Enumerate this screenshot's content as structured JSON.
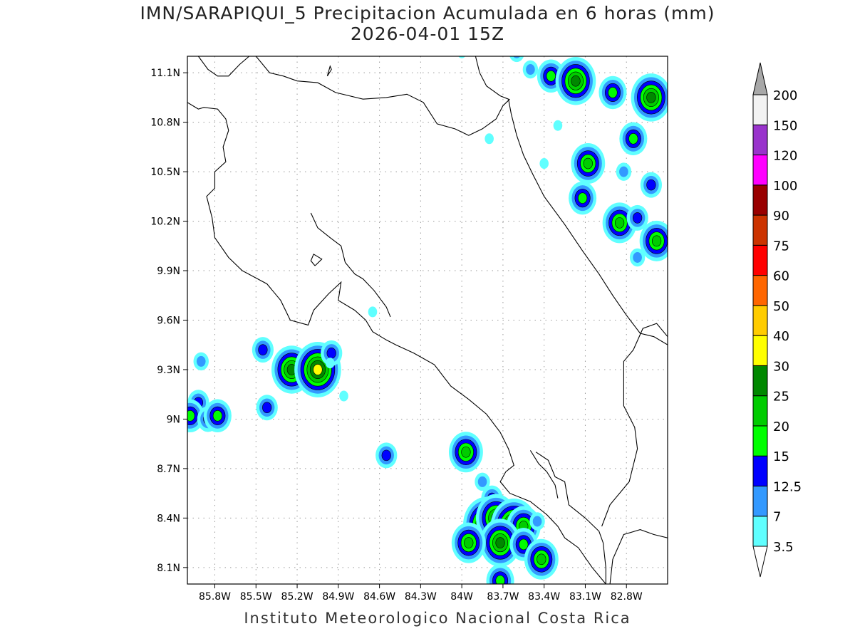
{
  "title": {
    "line1": "IMN/SARAPIQUI_5 Precipitacion Acumulada en 6 horas (mm)",
    "line2": "2026-04-01 15Z"
  },
  "footer": "Instituto Meteorologico Nacional Costa Rica",
  "map": {
    "lon_range": [
      -86.0,
      -82.5
    ],
    "lat_range": [
      8.0,
      11.2
    ],
    "lat_ticks": [
      {
        "value": 8.1,
        "label": "8.1N"
      },
      {
        "value": 8.4,
        "label": "8.4N"
      },
      {
        "value": 8.7,
        "label": "8.7N"
      },
      {
        "value": 9.0,
        "label": "9N"
      },
      {
        "value": 9.3,
        "label": "9.3N"
      },
      {
        "value": 9.6,
        "label": "9.6N"
      },
      {
        "value": 9.9,
        "label": "9.9N"
      },
      {
        "value": 10.2,
        "label": "10.2N"
      },
      {
        "value": 10.5,
        "label": "10.5N"
      },
      {
        "value": 10.8,
        "label": "10.8N"
      },
      {
        "value": 11.1,
        "label": "11.1N"
      }
    ],
    "lon_ticks": [
      {
        "value": -85.8,
        "label": "85.8W"
      },
      {
        "value": -85.5,
        "label": "85.5W"
      },
      {
        "value": -85.2,
        "label": "85.2W"
      },
      {
        "value": -84.9,
        "label": "84.9W"
      },
      {
        "value": -84.6,
        "label": "84.6W"
      },
      {
        "value": -84.3,
        "label": "84.3W"
      },
      {
        "value": -84.0,
        "label": "84W"
      },
      {
        "value": -83.7,
        "label": "83.7W"
      },
      {
        "value": -83.4,
        "label": "83.4W"
      },
      {
        "value": -83.1,
        "label": "83.1W"
      },
      {
        "value": -82.8,
        "label": "82.8W"
      }
    ],
    "grid": true,
    "colors": {
      "coastline": "#000000",
      "grid": "#9a9a9a"
    },
    "coastlines": [
      [
        [
          -85.92,
          11.2
        ],
        [
          -85.85,
          11.12
        ],
        [
          -85.78,
          11.08
        ],
        [
          -85.7,
          11.08
        ],
        [
          -85.62,
          11.15
        ],
        [
          -85.55,
          11.2
        ]
      ],
      [
        [
          -85.5,
          11.2
        ],
        [
          -85.4,
          11.1
        ],
        [
          -85.3,
          11.08
        ],
        [
          -85.2,
          11.05
        ],
        [
          -85.05,
          11.04
        ],
        [
          -84.92,
          10.98
        ],
        [
          -84.72,
          10.94
        ],
        [
          -84.55,
          10.95
        ],
        [
          -84.4,
          10.97
        ],
        [
          -84.28,
          10.92
        ],
        [
          -84.18,
          10.79
        ],
        [
          -84.05,
          10.76
        ],
        [
          -83.95,
          10.72
        ],
        [
          -83.85,
          10.76
        ],
        [
          -83.75,
          10.82
        ],
        [
          -83.7,
          10.9
        ],
        [
          -83.65,
          10.94
        ]
      ],
      [
        [
          -83.9,
          11.2
        ],
        [
          -83.87,
          11.1
        ],
        [
          -83.82,
          11.02
        ],
        [
          -83.72,
          10.96
        ],
        [
          -83.66,
          10.94
        ],
        [
          -83.64,
          10.85
        ],
        [
          -83.6,
          10.72
        ],
        [
          -83.55,
          10.6
        ],
        [
          -83.48,
          10.48
        ],
        [
          -83.4,
          10.35
        ],
        [
          -83.25,
          10.18
        ],
        [
          -83.12,
          10.02
        ],
        [
          -83.0,
          9.88
        ],
        [
          -82.9,
          9.75
        ],
        [
          -82.8,
          9.63
        ],
        [
          -82.7,
          9.52
        ],
        [
          -82.6,
          9.5
        ],
        [
          -82.5,
          9.45
        ]
      ],
      [
        [
          -86.0,
          10.92
        ],
        [
          -85.92,
          10.88
        ],
        [
          -85.88,
          10.89
        ],
        [
          -85.78,
          10.88
        ],
        [
          -85.72,
          10.82
        ],
        [
          -85.7,
          10.75
        ],
        [
          -85.74,
          10.65
        ],
        [
          -85.72,
          10.56
        ],
        [
          -85.8,
          10.5
        ],
        [
          -85.8,
          10.4
        ],
        [
          -85.86,
          10.35
        ],
        [
          -85.82,
          10.22
        ],
        [
          -85.8,
          10.1
        ],
        [
          -85.7,
          9.98
        ],
        [
          -85.6,
          9.9
        ],
        [
          -85.42,
          9.82
        ],
        [
          -85.32,
          9.72
        ],
        [
          -85.25,
          9.6
        ],
        [
          -85.12,
          9.57
        ],
        [
          -85.08,
          9.66
        ],
        [
          -84.97,
          9.76
        ],
        [
          -84.88,
          9.83
        ],
        [
          -84.9,
          9.72
        ],
        [
          -84.78,
          9.66
        ],
        [
          -84.7,
          9.6
        ],
        [
          -84.65,
          9.53
        ],
        [
          -84.55,
          9.48
        ],
        [
          -84.48,
          9.45
        ],
        [
          -84.35,
          9.4
        ],
        [
          -84.2,
          9.33
        ],
        [
          -84.08,
          9.2
        ],
        [
          -83.95,
          9.12
        ],
        [
          -83.82,
          9.03
        ],
        [
          -83.72,
          8.92
        ],
        [
          -83.66,
          8.82
        ],
        [
          -83.62,
          8.72
        ],
        [
          -83.68,
          8.68
        ],
        [
          -83.72,
          8.62
        ],
        [
          -83.65,
          8.55
        ],
        [
          -83.5,
          8.5
        ],
        [
          -83.38,
          8.42
        ],
        [
          -83.3,
          8.35
        ],
        [
          -83.25,
          8.28
        ],
        [
          -83.15,
          8.22
        ],
        [
          -83.05,
          8.1
        ],
        [
          -82.97,
          8.02
        ],
        [
          -82.95,
          8.0
        ]
      ],
      [
        [
          -85.1,
          10.25
        ],
        [
          -85.05,
          10.16
        ],
        [
          -84.96,
          10.1
        ],
        [
          -84.88,
          10.05
        ],
        [
          -84.85,
          9.95
        ],
        [
          -84.78,
          9.88
        ],
        [
          -84.72,
          9.85
        ],
        [
          -84.64,
          9.78
        ],
        [
          -84.55,
          9.68
        ],
        [
          -84.52,
          9.62
        ]
      ],
      [
        [
          -83.46,
          8.8
        ],
        [
          -83.37,
          8.75
        ],
        [
          -83.32,
          8.65
        ],
        [
          -83.25,
          8.62
        ],
        [
          -83.22,
          8.48
        ],
        [
          -83.1,
          8.4
        ],
        [
          -83.0,
          8.32
        ],
        [
          -82.97,
          8.25
        ],
        [
          -82.95,
          8.1
        ],
        [
          -82.95,
          8.0
        ]
      ],
      [
        [
          -82.92,
          8.0
        ],
        [
          -82.9,
          8.15
        ],
        [
          -82.82,
          8.3
        ],
        [
          -82.7,
          8.33
        ],
        [
          -82.6,
          8.3
        ],
        [
          -82.5,
          8.28
        ]
      ],
      [
        [
          -83.5,
          8.81
        ],
        [
          -83.44,
          8.73
        ],
        [
          -83.38,
          8.68
        ],
        [
          -83.32,
          8.6
        ],
        [
          -83.3,
          8.52
        ]
      ],
      [
        [
          -82.5,
          9.5
        ],
        [
          -82.58,
          9.58
        ],
        [
          -82.68,
          9.55
        ],
        [
          -82.75,
          9.42
        ],
        [
          -82.82,
          9.35
        ],
        [
          -82.82,
          9.08
        ],
        [
          -82.74,
          8.95
        ],
        [
          -82.72,
          8.82
        ],
        [
          -82.78,
          8.62
        ],
        [
          -82.92,
          8.48
        ],
        [
          -82.98,
          8.35
        ]
      ],
      [
        [
          -85.07,
          9.93
        ],
        [
          -85.02,
          9.97
        ],
        [
          -85.08,
          10.0
        ],
        [
          -85.1,
          9.96
        ],
        [
          -85.07,
          9.93
        ]
      ],
      [
        [
          -84.98,
          11.08
        ],
        [
          -84.95,
          11.12
        ],
        [
          -84.96,
          11.14
        ],
        [
          -84.98,
          11.08
        ]
      ]
    ],
    "precip_cells": [
      {
        "lon": -85.9,
        "lat": 9.35,
        "value": 7
      },
      {
        "lon": -85.92,
        "lat": 9.1,
        "value": 12.5
      },
      {
        "lon": -85.98,
        "lat": 9.02,
        "value": 15
      },
      {
        "lon": -85.85,
        "lat": 9.0,
        "value": 12.5
      },
      {
        "lon": -85.78,
        "lat": 9.02,
        "value": 15
      },
      {
        "lon": -85.45,
        "lat": 9.42,
        "value": 12.5
      },
      {
        "lon": -85.42,
        "lat": 9.07,
        "value": 12.5
      },
      {
        "lon": -85.24,
        "lat": 9.3,
        "value": 25
      },
      {
        "lon": -85.05,
        "lat": 9.3,
        "value": 30
      },
      {
        "lon": -84.95,
        "lat": 9.4,
        "value": 12.5
      },
      {
        "lon": -84.96,
        "lat": 9.34,
        "value": 3.5
      },
      {
        "lon": -84.86,
        "lat": 9.14,
        "value": 3.5
      },
      {
        "lon": -84.55,
        "lat": 8.78,
        "value": 12.5
      },
      {
        "lon": -84.65,
        "lat": 9.65,
        "value": 3.5
      },
      {
        "lon": -83.97,
        "lat": 8.8,
        "value": 20
      },
      {
        "lon": -83.85,
        "lat": 8.62,
        "value": 7
      },
      {
        "lon": -83.78,
        "lat": 8.52,
        "value": 12.5
      },
      {
        "lon": -83.82,
        "lat": 8.36,
        "value": 30
      },
      {
        "lon": -83.75,
        "lat": 8.4,
        "value": 25
      },
      {
        "lon": -83.62,
        "lat": 8.35,
        "value": 30
      },
      {
        "lon": -83.55,
        "lat": 8.35,
        "value": 20
      },
      {
        "lon": -83.72,
        "lat": 8.25,
        "value": 25
      },
      {
        "lon": -83.95,
        "lat": 8.25,
        "value": 20
      },
      {
        "lon": -83.55,
        "lat": 8.24,
        "value": 15
      },
      {
        "lon": -83.42,
        "lat": 8.15,
        "value": 20
      },
      {
        "lon": -83.45,
        "lat": 8.38,
        "value": 7
      },
      {
        "lon": -83.72,
        "lat": 8.02,
        "value": 15
      },
      {
        "lon": -83.5,
        "lat": 11.12,
        "value": 7
      },
      {
        "lon": -83.35,
        "lat": 11.08,
        "value": 15
      },
      {
        "lon": -83.17,
        "lat": 11.05,
        "value": 25
      },
      {
        "lon": -82.9,
        "lat": 10.98,
        "value": 15
      },
      {
        "lon": -82.62,
        "lat": 10.95,
        "value": 25
      },
      {
        "lon": -82.75,
        "lat": 10.7,
        "value": 15
      },
      {
        "lon": -83.08,
        "lat": 10.55,
        "value": 20
      },
      {
        "lon": -82.82,
        "lat": 10.5,
        "value": 7
      },
      {
        "lon": -82.62,
        "lat": 10.42,
        "value": 12.5
      },
      {
        "lon": -83.12,
        "lat": 10.34,
        "value": 15
      },
      {
        "lon": -82.85,
        "lat": 10.19,
        "value": 20
      },
      {
        "lon": -82.72,
        "lat": 10.22,
        "value": 12.5
      },
      {
        "lon": -82.58,
        "lat": 10.08,
        "value": 20
      },
      {
        "lon": -82.72,
        "lat": 9.98,
        "value": 7
      },
      {
        "lon": -84.0,
        "lat": 11.22,
        "value": 3.5
      },
      {
        "lon": -83.6,
        "lat": 11.22,
        "value": 7
      },
      {
        "lon": -83.8,
        "lat": 10.7,
        "value": 3.5
      },
      {
        "lon": -83.4,
        "lat": 10.55,
        "value": 3.5
      },
      {
        "lon": -83.3,
        "lat": 10.78,
        "value": 3.5
      }
    ]
  },
  "colorbar": {
    "levels": [
      "3.5",
      "7",
      "12.5",
      "15",
      "20",
      "25",
      "30",
      "40",
      "50",
      "60",
      "75",
      "90",
      "100",
      "120",
      "150",
      "200"
    ],
    "colors": [
      "#60ffff",
      "#3399ff",
      "#0000ff",
      "#00ff00",
      "#00cc00",
      "#008800",
      "#ffff00",
      "#ffcc00",
      "#ff6600",
      "#ff0000",
      "#cc3300",
      "#990000",
      "#ff00ff",
      "#9933cc",
      "#f2f2f2",
      "#a8a8a8"
    ],
    "under_color": "#ffffff",
    "over_color": "#a8a8a8"
  }
}
